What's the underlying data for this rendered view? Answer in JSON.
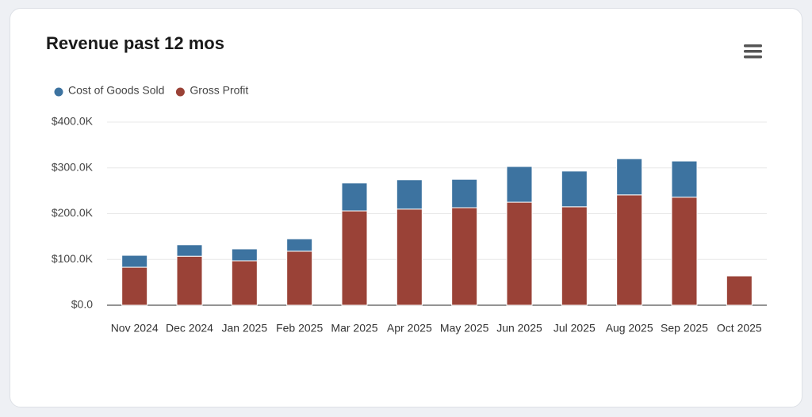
{
  "chart_data": {
    "type": "stacked-bar",
    "title": "Revenue past 12 mos",
    "categories": [
      "Nov 2024",
      "Dec 2024",
      "Jan 2025",
      "Feb 2025",
      "Mar 2025",
      "Apr 2025",
      "May 2025",
      "Jun 2025",
      "Jul 2025",
      "Aug 2025",
      "Sep 2025",
      "Oct 2025"
    ],
    "series": [
      {
        "name": "Cost of Goods Sold",
        "color": "#3d73a0",
        "values": [
          26000,
          25000,
          26000,
          27000,
          61000,
          64000,
          62000,
          78000,
          78000,
          79000,
          79000,
          0
        ]
      },
      {
        "name": "Gross Profit",
        "color": "#9a4237",
        "values": [
          83000,
          107000,
          97000,
          118000,
          206000,
          210000,
          213000,
          225000,
          215000,
          241000,
          236000,
          64000
        ]
      }
    ],
    "stack_order": [
      "Gross Profit",
      "Cost of Goods Sold"
    ],
    "ylim": [
      0,
      400000
    ],
    "yticks": [
      {
        "value": 0,
        "label": "$0.0"
      },
      {
        "value": 100000,
        "label": "$100.0K"
      },
      {
        "value": 200000,
        "label": "$200.0K"
      },
      {
        "value": 300000,
        "label": "$300.0K"
      },
      {
        "value": 400000,
        "label": "$400.0K"
      }
    ],
    "grid": true,
    "legend": "top-left"
  }
}
